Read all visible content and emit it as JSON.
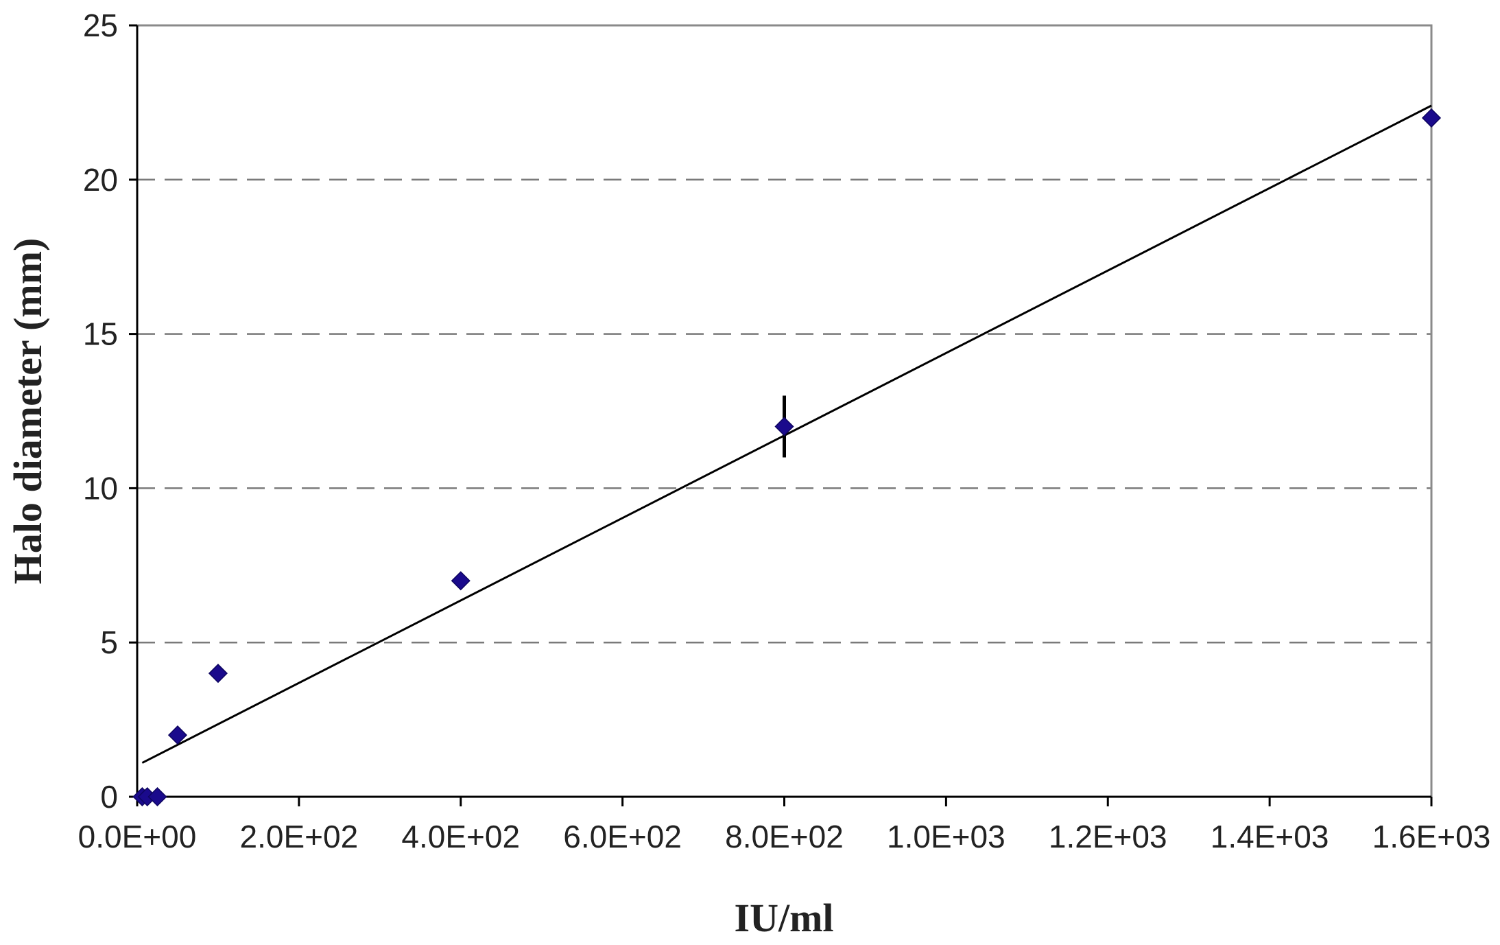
{
  "chart_data": {
    "type": "scatter",
    "title": "",
    "xlabel": "IU/ml",
    "ylabel": "Halo diameter (mm)",
    "xlim": [
      0,
      1600
    ],
    "ylim": [
      0,
      25
    ],
    "x_ticks": [
      0,
      200,
      400,
      600,
      800,
      1000,
      1200,
      1400,
      1600
    ],
    "x_tick_labels": [
      "0.0E+00",
      "2.0E+02",
      "4.0E+02",
      "6.0E+02",
      "8.0E+02",
      "1.0E+03",
      "1.2E+03",
      "1.4E+03",
      "1.6E+03"
    ],
    "y_ticks": [
      0,
      5,
      10,
      15,
      20,
      25
    ],
    "y_tick_labels": [
      "0",
      "5",
      "10",
      "15",
      "20",
      "25"
    ],
    "grid": "horizontal dashed",
    "legend": "none",
    "points": [
      {
        "x": 6.25,
        "y": 0
      },
      {
        "x": 12.5,
        "y": 0
      },
      {
        "x": 25,
        "y": 0
      },
      {
        "x": 50,
        "y": 2
      },
      {
        "x": 100,
        "y": 4
      },
      {
        "x": 400,
        "y": 7
      },
      {
        "x": 800,
        "y": 12,
        "error": 1
      },
      {
        "x": 1600,
        "y": 22
      }
    ],
    "trendline": {
      "type": "linear",
      "x": [
        6.25,
        1600
      ],
      "y": [
        1.1,
        22.4
      ]
    },
    "marker_color": "#1a0a8c",
    "line_color": "#000000",
    "grid_color": "#7a7a7a"
  }
}
